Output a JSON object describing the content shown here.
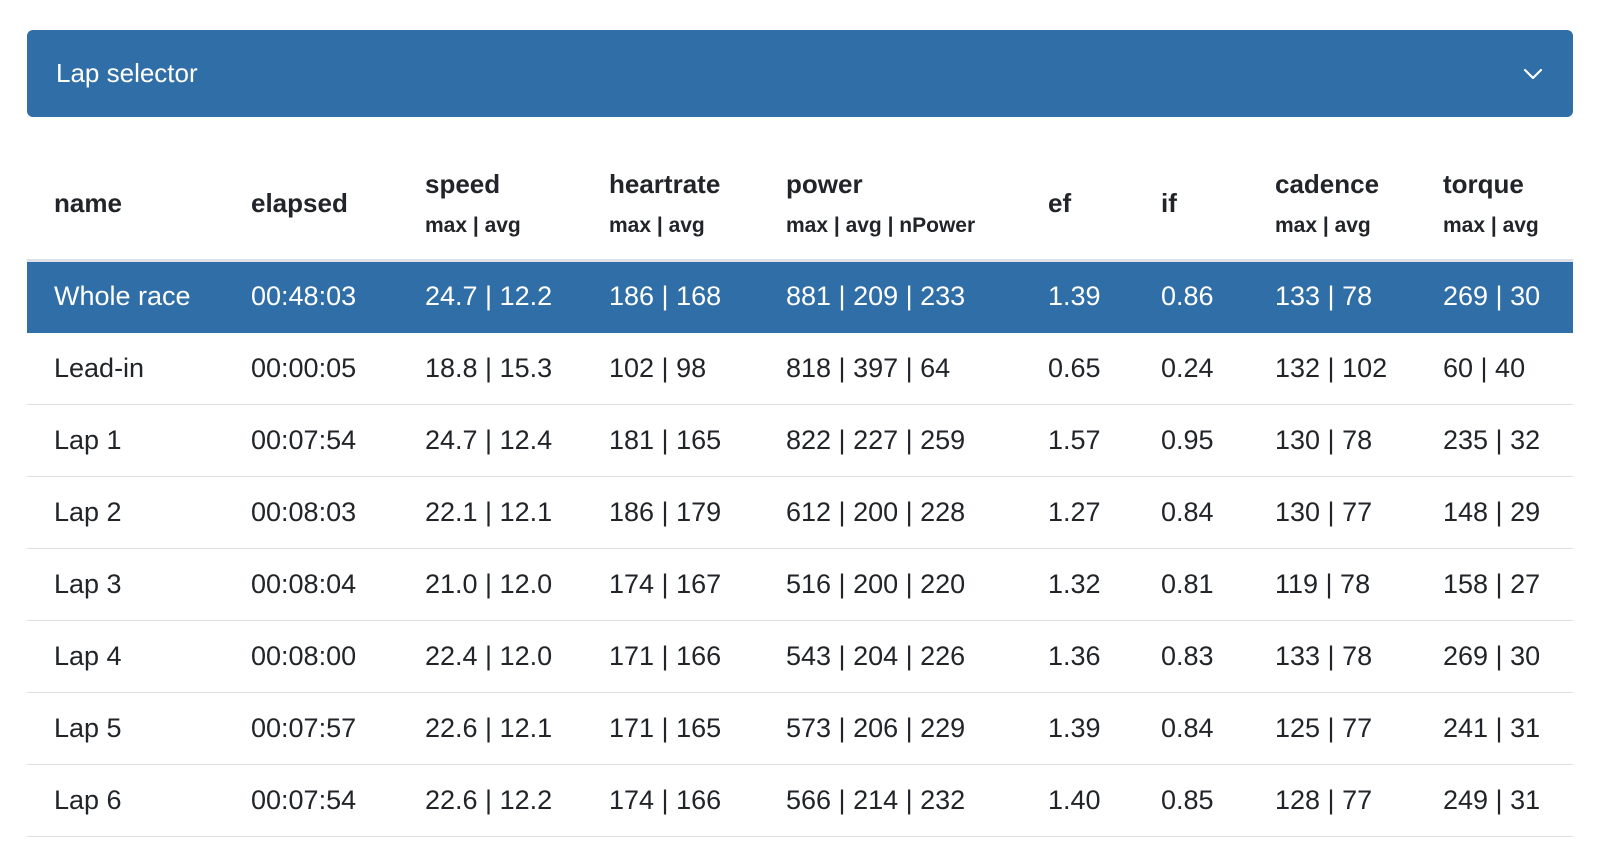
{
  "lap_selector": {
    "label": "Lap selector",
    "icon": "chevron-down-icon",
    "color": "#2f6ea6"
  },
  "table": {
    "headers": [
      {
        "key": "name",
        "label": "name",
        "sub": ""
      },
      {
        "key": "elapsed",
        "label": "elapsed",
        "sub": ""
      },
      {
        "key": "speed",
        "label": "speed",
        "sub": "max | avg"
      },
      {
        "key": "heartrate",
        "label": "heartrate",
        "sub": "max | avg"
      },
      {
        "key": "power",
        "label": "power",
        "sub": "max | avg | nPower"
      },
      {
        "key": "ef",
        "label": "ef",
        "sub": ""
      },
      {
        "key": "if",
        "label": "if",
        "sub": ""
      },
      {
        "key": "cadence",
        "label": "cadence",
        "sub": "max | avg"
      },
      {
        "key": "torque",
        "label": "torque",
        "sub": "max | avg"
      }
    ],
    "rows": [
      {
        "name": "Whole race",
        "elapsed": "00:48:03",
        "speed": "24.7 | 12.2",
        "heartrate": "186 | 168",
        "power": "881 | 209 | 233",
        "ef": "1.39",
        "if": "0.86",
        "cadence": "133 | 78",
        "torque": "269 | 30",
        "selected": true
      },
      {
        "name": "Lead-in",
        "elapsed": "00:00:05",
        "speed": "18.8 | 15.3",
        "heartrate": "102 | 98",
        "power": "818 | 397 | 64",
        "ef": "0.65",
        "if": "0.24",
        "cadence": "132 | 102",
        "torque": "60 | 40",
        "selected": false
      },
      {
        "name": "Lap 1",
        "elapsed": "00:07:54",
        "speed": "24.7 | 12.4",
        "heartrate": "181 | 165",
        "power": "822 | 227 | 259",
        "ef": "1.57",
        "if": "0.95",
        "cadence": "130 | 78",
        "torque": "235 | 32",
        "selected": false
      },
      {
        "name": "Lap 2",
        "elapsed": "00:08:03",
        "speed": "22.1 | 12.1",
        "heartrate": "186 | 179",
        "power": "612 | 200 | 228",
        "ef": "1.27",
        "if": "0.84",
        "cadence": "130 | 77",
        "torque": "148 | 29",
        "selected": false
      },
      {
        "name": "Lap 3",
        "elapsed": "00:08:04",
        "speed": "21.0 | 12.0",
        "heartrate": "174 | 167",
        "power": "516 | 200 | 220",
        "ef": "1.32",
        "if": "0.81",
        "cadence": "119 | 78",
        "torque": "158 | 27",
        "selected": false
      },
      {
        "name": "Lap 4",
        "elapsed": "00:08:00",
        "speed": "22.4 | 12.0",
        "heartrate": "171 | 166",
        "power": "543 | 204 | 226",
        "ef": "1.36",
        "if": "0.83",
        "cadence": "133 | 78",
        "torque": "269 | 30",
        "selected": false
      },
      {
        "name": "Lap 5",
        "elapsed": "00:07:57",
        "speed": "22.6 | 12.1",
        "heartrate": "171 | 165",
        "power": "573 | 206 | 229",
        "ef": "1.39",
        "if": "0.84",
        "cadence": "125 | 77",
        "torque": "241 | 31",
        "selected": false
      },
      {
        "name": "Lap 6",
        "elapsed": "00:07:54",
        "speed": "22.6 | 12.2",
        "heartrate": "174 | 166",
        "power": "566 | 214 | 232",
        "ef": "1.40",
        "if": "0.85",
        "cadence": "128 | 77",
        "torque": "249 | 31",
        "selected": false
      }
    ]
  }
}
